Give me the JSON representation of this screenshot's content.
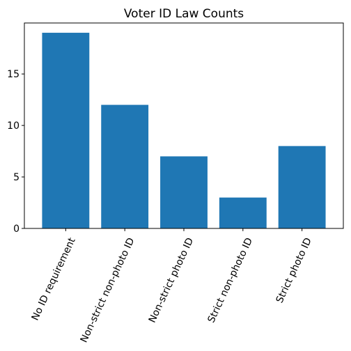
{
  "chart_data": {
    "type": "bar",
    "title": "Voter ID Law Counts",
    "xlabel": "",
    "ylabel": "",
    "categories": [
      "No ID requirement",
      "Non-strict non-photo ID",
      "Non-strict photo ID",
      "Strict non-photo ID",
      "Strict photo ID"
    ],
    "values": [
      19,
      12,
      7,
      3,
      8
    ],
    "ylim": [
      0,
      19.95
    ],
    "yticks": [
      0,
      5,
      10,
      15
    ],
    "grid": false,
    "bar_color": "#1f77b4",
    "xtick_rotation_deg": 65
  }
}
